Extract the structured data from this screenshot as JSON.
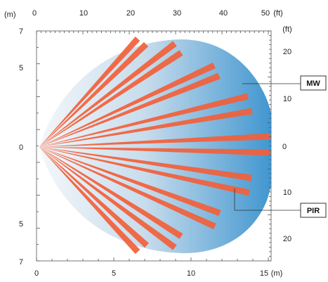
{
  "units": {
    "top_left": "(m)",
    "top_right": "(ft)",
    "bottom_right": "(m)",
    "bottom_right_number": "15"
  },
  "top_axis_ft": [
    "0",
    "10",
    "20",
    "30",
    "40",
    "50"
  ],
  "bottom_axis_m": [
    "0",
    "5",
    "10"
  ],
  "left_axis_m": [
    "7",
    "5",
    "0",
    "5",
    "7"
  ],
  "right_axis_ft": [
    "20",
    "10",
    "0",
    "10",
    "20"
  ],
  "labels": {
    "mw": "MW",
    "pir": "PIR"
  },
  "colors": {
    "pir_beam": "#f2603a",
    "mw_light": "#eef3f8",
    "mw_dark": "#3d94cf",
    "axis": "#555555"
  },
  "pir_beam_count": 16
}
